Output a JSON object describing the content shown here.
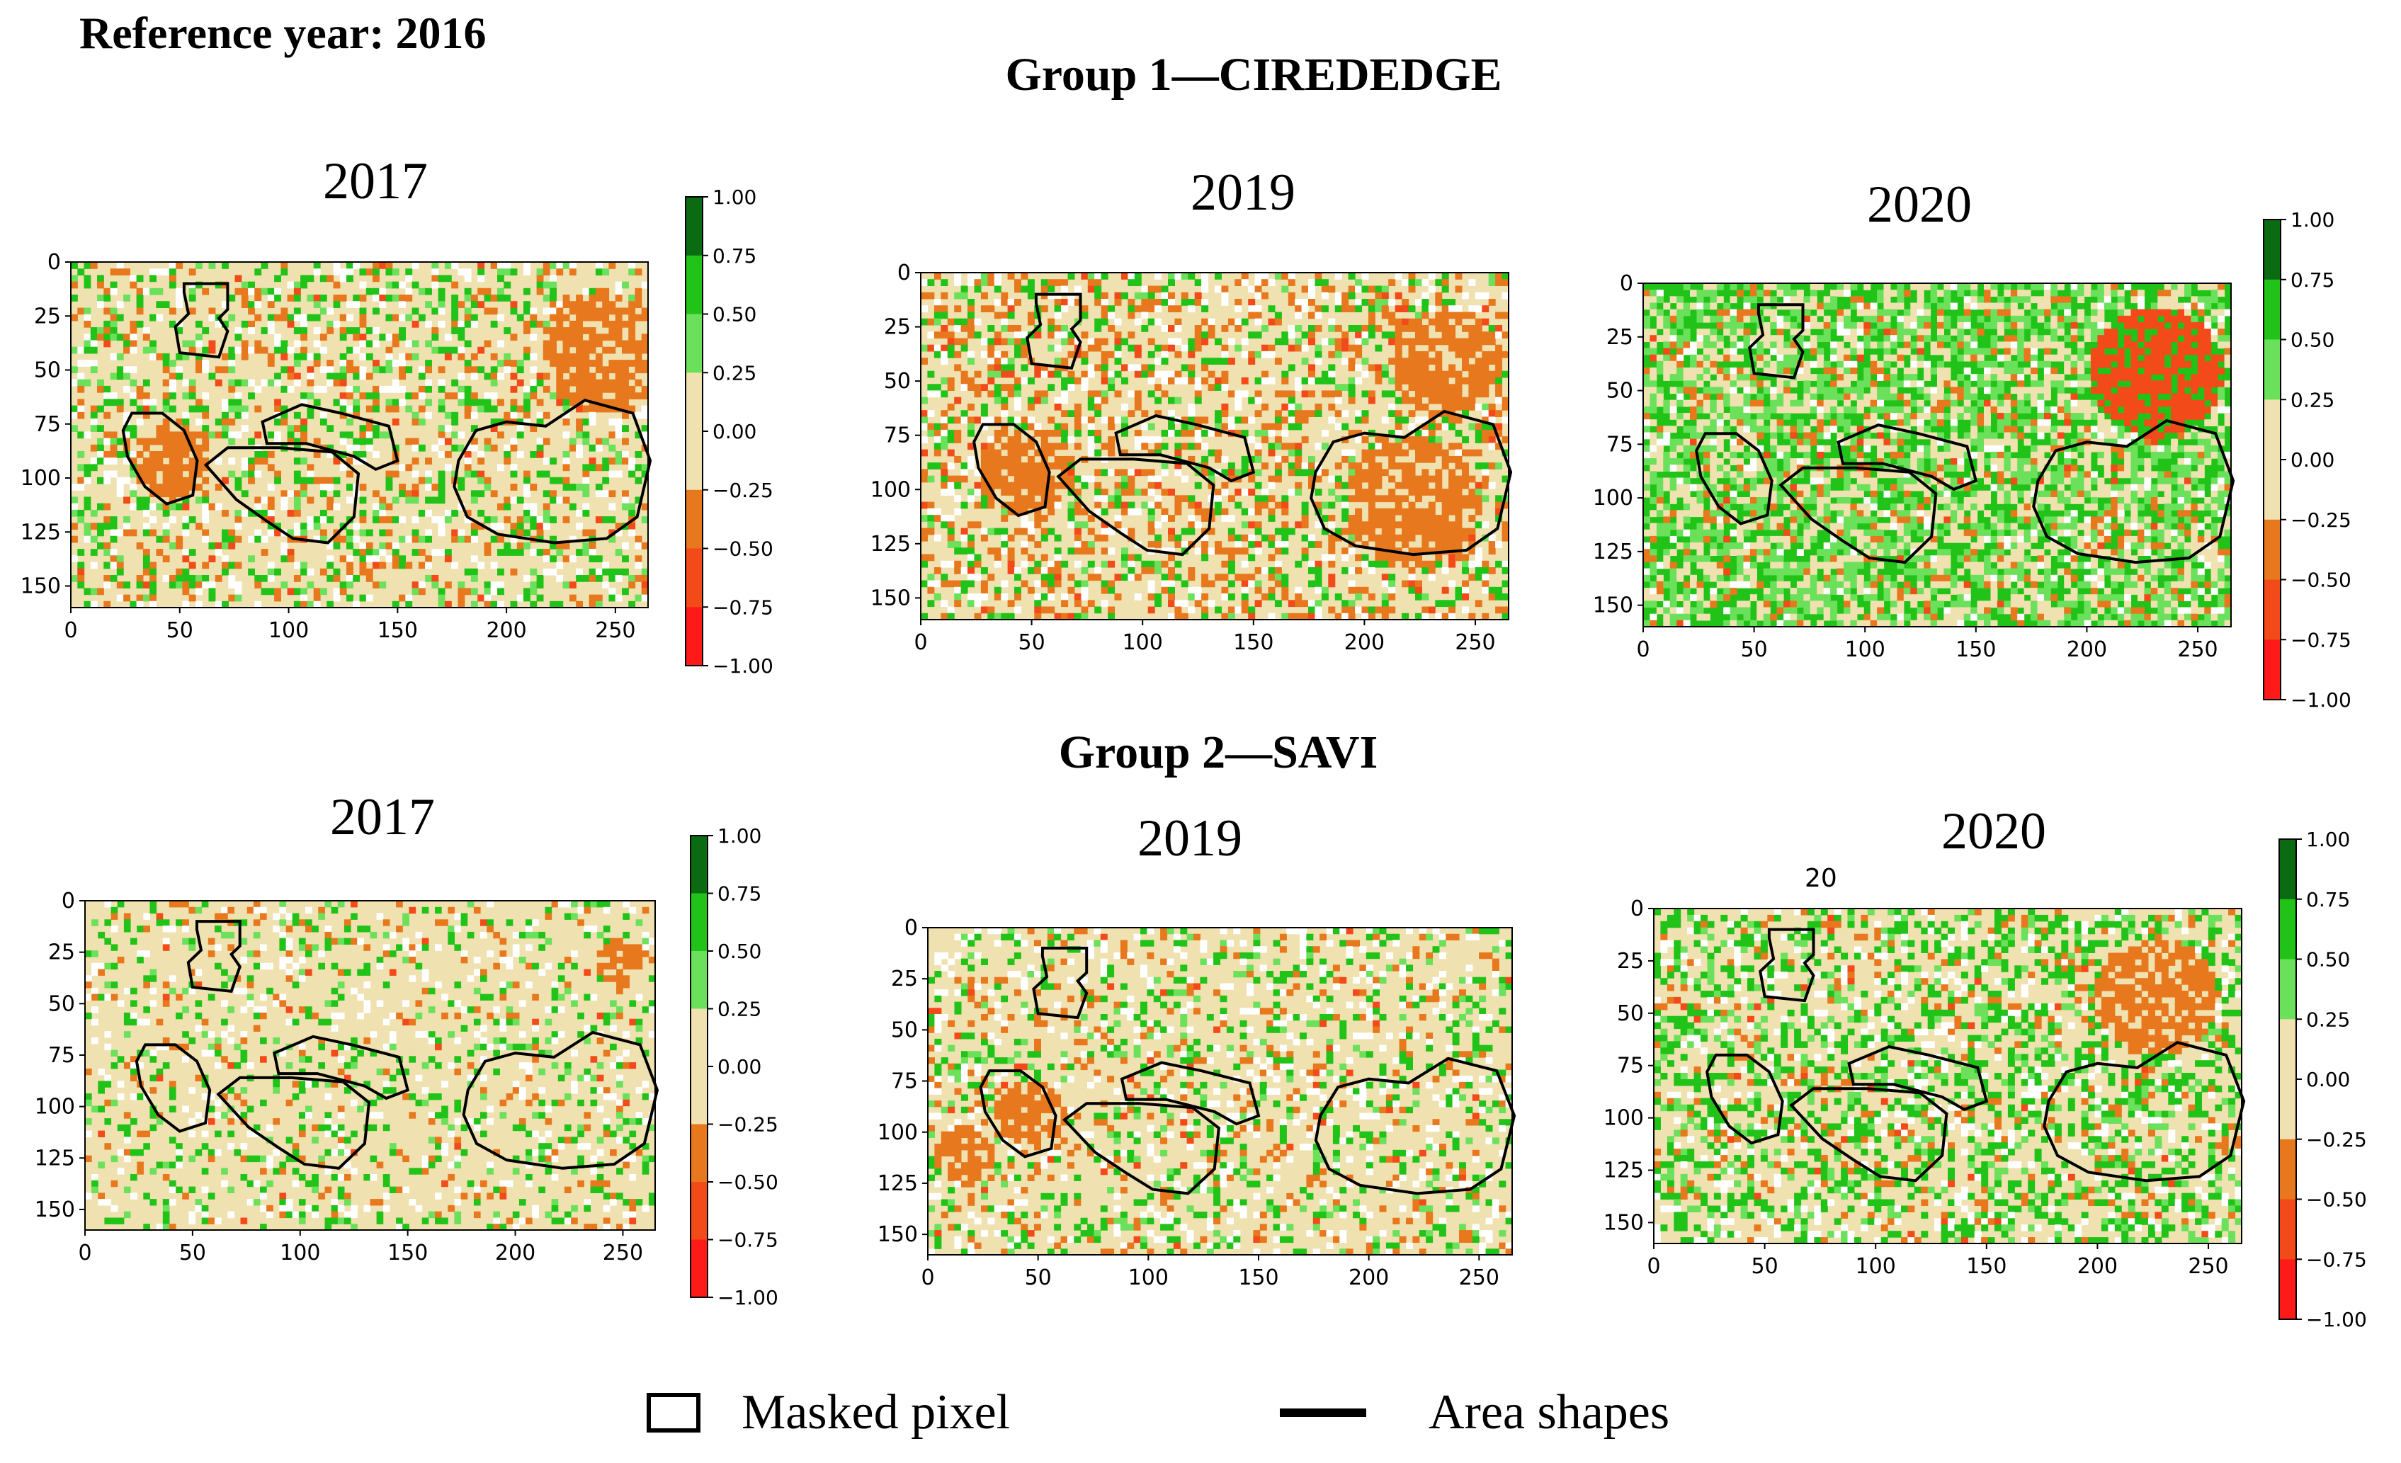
{
  "reference_title": "Reference year: 2016",
  "group_titles": [
    "Group 1—CIREDEDGE",
    "Group 2—SAVI"
  ],
  "legend": {
    "masked_pixel": "Masked pixel",
    "area_shapes": "Area shapes"
  },
  "stray_text": "20",
  "colors": {
    "sand": "#f0e2b0",
    "orange": "#e8781e",
    "red_orange": "#f34a19",
    "red": "#ff1a1a",
    "green": "#21c318",
    "light_green": "#6be05b",
    "dark_green": "#0b6b13",
    "masked": "#ffffff"
  },
  "chart_data": [
    {
      "type": "heatmap",
      "group": "Group 1—CIREDEDGE",
      "title": "2017",
      "x_ticks": [
        "0",
        "50",
        "100",
        "150",
        "200",
        "250"
      ],
      "x_tick_values": [
        0,
        50,
        100,
        150,
        200,
        250
      ],
      "y_ticks": [
        "0",
        "25",
        "50",
        "75",
        "100",
        "125",
        "150"
      ],
      "y_tick_values": [
        0,
        25,
        50,
        75,
        100,
        125,
        150
      ],
      "xlim": [
        0,
        265
      ],
      "ylim": [
        160,
        0
      ],
      "colorbar": {
        "ticks": [
          "1.00",
          "0.75",
          "0.50",
          "0.25",
          "0.00",
          "−0.25",
          "−0.50",
          "−0.75",
          "−1.00"
        ],
        "tick_values": [
          1,
          0.75,
          0.5,
          0.25,
          0,
          -0.25,
          -0.5,
          -0.75,
          -1
        ],
        "range": [
          -1,
          1
        ]
      },
      "dominant": "sand",
      "green_share": 0.18,
      "orange_share": 0.12,
      "masked_share": 0.1,
      "hotspots": [
        {
          "cx": 242,
          "cy": 40,
          "r": 28,
          "cat": "orange"
        },
        {
          "cx": 45,
          "cy": 90,
          "r": 18,
          "cat": "orange"
        }
      ]
    },
    {
      "type": "heatmap",
      "group": "Group 1—CIREDEDGE",
      "title": "2019",
      "x_ticks": [
        "0",
        "50",
        "100",
        "150",
        "200",
        "250"
      ],
      "x_tick_values": [
        0,
        50,
        100,
        150,
        200,
        250
      ],
      "y_ticks": [
        "0",
        "25",
        "50",
        "75",
        "100",
        "125",
        "150"
      ],
      "y_tick_values": [
        0,
        25,
        50,
        75,
        100,
        125,
        150
      ],
      "xlim": [
        0,
        265
      ],
      "ylim": [
        160,
        0
      ],
      "colorbar": null,
      "dominant": "sand",
      "green_share": 0.14,
      "orange_share": 0.2,
      "masked_share": 0.12,
      "hotspots": [
        {
          "cx": 235,
          "cy": 40,
          "r": 25,
          "cat": "orange"
        },
        {
          "cx": 220,
          "cy": 105,
          "r": 30,
          "cat": "orange"
        },
        {
          "cx": 45,
          "cy": 90,
          "r": 20,
          "cat": "orange"
        }
      ]
    },
    {
      "type": "heatmap",
      "group": "Group 1—CIREDEDGE",
      "title": "2020",
      "x_ticks": [
        "0",
        "50",
        "100",
        "150",
        "200",
        "250"
      ],
      "x_tick_values": [
        0,
        50,
        100,
        150,
        200,
        250
      ],
      "y_ticks": [
        "0",
        "25",
        "50",
        "75",
        "100",
        "125",
        "150"
      ],
      "y_tick_values": [
        0,
        25,
        50,
        75,
        100,
        125,
        150
      ],
      "xlim": [
        0,
        265
      ],
      "ylim": [
        160,
        0
      ],
      "colorbar": {
        "ticks": [
          "1.00",
          "0.75",
          "0.50",
          "0.25",
          "0.00",
          "−0.25",
          "−0.50",
          "−0.75",
          "−1.00"
        ],
        "tick_values": [
          1,
          0.75,
          0.5,
          0.25,
          0,
          -0.25,
          -0.5,
          -0.75,
          -1
        ],
        "range": [
          -1,
          1
        ]
      },
      "dominant": "green",
      "green_share": 0.55,
      "orange_share": 0.1,
      "masked_share": 0.06,
      "hotspots": [
        {
          "cx": 230,
          "cy": 40,
          "r": 30,
          "cat": "red_orange"
        }
      ]
    },
    {
      "type": "heatmap",
      "group": "Group 2—SAVI",
      "title": "2017",
      "x_ticks": [
        "0",
        "50",
        "100",
        "150",
        "200",
        "250"
      ],
      "x_tick_values": [
        0,
        50,
        100,
        150,
        200,
        250
      ],
      "y_ticks": [
        "0",
        "25",
        "50",
        "75",
        "100",
        "125",
        "150"
      ],
      "y_tick_values": [
        0,
        25,
        50,
        75,
        100,
        125,
        150
      ],
      "xlim": [
        0,
        265
      ],
      "ylim": [
        160,
        0
      ],
      "colorbar": {
        "ticks": [
          "1.00",
          "0.75",
          "0.50",
          "0.25",
          "0.00",
          "−0.25",
          "−0.50",
          "−0.75",
          "−1.00"
        ],
        "tick_values": [
          1,
          0.75,
          0.5,
          0.25,
          0,
          -0.25,
          -0.5,
          -0.75,
          -1
        ],
        "range": [
          -1,
          1
        ]
      },
      "dominant": "sand",
      "green_share": 0.12,
      "orange_share": 0.06,
      "masked_share": 0.08,
      "hotspots": [
        {
          "cx": 248,
          "cy": 28,
          "r": 12,
          "cat": "orange"
        }
      ]
    },
    {
      "type": "heatmap",
      "group": "Group 2—SAVI",
      "title": "2019",
      "x_ticks": [
        "0",
        "50",
        "100",
        "150",
        "200",
        "250"
      ],
      "x_tick_values": [
        0,
        50,
        100,
        150,
        200,
        250
      ],
      "y_ticks": [
        "0",
        "25",
        "50",
        "75",
        "100",
        "125",
        "150"
      ],
      "y_tick_values": [
        0,
        25,
        50,
        75,
        100,
        125,
        150
      ],
      "xlim": [
        0,
        265
      ],
      "ylim": [
        160,
        0
      ],
      "colorbar": null,
      "dominant": "sand",
      "green_share": 0.15,
      "orange_share": 0.08,
      "masked_share": 0.1,
      "hotspots": [
        {
          "cx": 45,
          "cy": 90,
          "r": 16,
          "cat": "orange"
        },
        {
          "cx": 15,
          "cy": 110,
          "r": 14,
          "cat": "orange"
        }
      ]
    },
    {
      "type": "heatmap",
      "group": "Group 2—SAVI",
      "title": "2020",
      "x_ticks": [
        "0",
        "50",
        "100",
        "150",
        "200",
        "250"
      ],
      "x_tick_values": [
        0,
        50,
        100,
        150,
        200,
        250
      ],
      "y_ticks": [
        "0",
        "25",
        "50",
        "75",
        "100",
        "125",
        "150"
      ],
      "y_tick_values": [
        0,
        25,
        50,
        75,
        100,
        125,
        150
      ],
      "xlim": [
        0,
        265
      ],
      "ylim": [
        160,
        0
      ],
      "colorbar": {
        "ticks": [
          "1.00",
          "0.75",
          "0.50",
          "0.25",
          "0.00",
          "−0.25",
          "−0.50",
          "−0.75",
          "−1.00"
        ],
        "tick_values": [
          1,
          0.75,
          0.5,
          0.25,
          0,
          -0.25,
          -0.5,
          -0.75,
          -1
        ],
        "range": [
          -1,
          1
        ]
      },
      "dominant": "sand",
      "green_share": 0.3,
      "orange_share": 0.08,
      "masked_share": 0.1,
      "hotspots": [
        {
          "cx": 225,
          "cy": 40,
          "r": 28,
          "cat": "orange"
        }
      ]
    }
  ]
}
